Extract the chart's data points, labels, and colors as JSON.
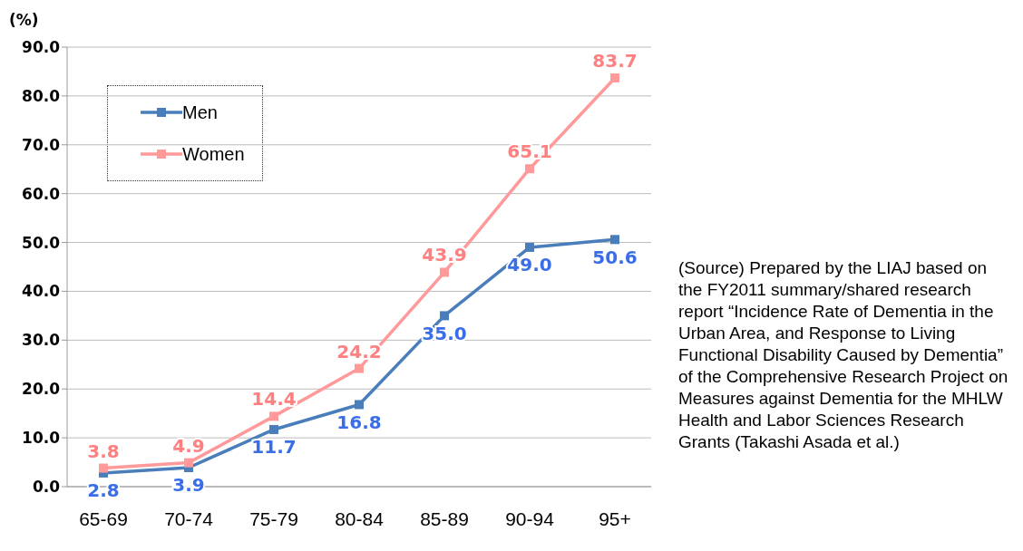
{
  "chart_data": {
    "type": "line",
    "ylabel": "(%)",
    "categories": [
      "65-69",
      "70-74",
      "75-79",
      "80-84",
      "85-89",
      "90-94",
      "95+"
    ],
    "series": [
      {
        "name": "Men",
        "color": "#4a7ebb",
        "values": [
          2.8,
          3.9,
          11.7,
          16.8,
          35.0,
          49.0,
          50.6
        ],
        "value_labels": [
          "2.8",
          "3.9",
          "11.7",
          "16.8",
          "35.0",
          "49.0",
          "50.6"
        ]
      },
      {
        "name": "Women",
        "color": "#ff999a",
        "values": [
          3.8,
          4.9,
          14.4,
          24.2,
          43.9,
          65.1,
          83.7
        ],
        "value_labels": [
          "3.8",
          "4.9",
          "14.4",
          "24.2",
          "43.9",
          "65.1",
          "83.7"
        ]
      }
    ],
    "ylim": [
      0,
      90
    ],
    "yticks": [
      {
        "value": 0,
        "label": "0.0"
      },
      {
        "value": 10,
        "label": "10.0"
      },
      {
        "value": 20,
        "label": "20.0"
      },
      {
        "value": 30,
        "label": "30.0"
      },
      {
        "value": 40,
        "label": "40.0"
      },
      {
        "value": 50,
        "label": "50.0"
      },
      {
        "value": 60,
        "label": "60.0"
      },
      {
        "value": 70,
        "label": "70.0"
      },
      {
        "value": 80,
        "label": "80.0"
      },
      {
        "value": 90,
        "label": "90.0"
      }
    ],
    "grid": "y",
    "legend": "top left",
    "marker": "square",
    "line_style": "solid",
    "annotations": [
      "(Source) Prepared by the LIAJ based on the FY2011 summary/shared research report “Incidence Rate of Dementia in the Urban Area, and Response to Living Functional Disability Caused by Dementia” of the Comprehensive Research Project on Measures against Dementia for the MHLW Health and Labor Sciences Research Grants (Takashi Asada et al.)"
    ]
  }
}
